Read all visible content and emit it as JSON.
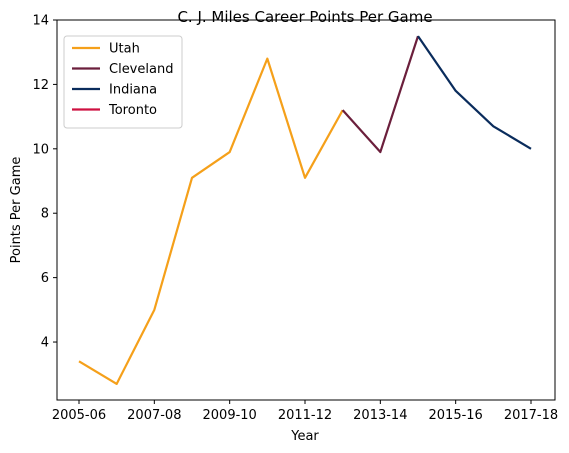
{
  "chart_data": {
    "type": "line",
    "title": "C. J. Miles Career Points Per Game",
    "xlabel": "Year",
    "ylabel": "Points Per Game",
    "x_ticks": [
      "2005-06",
      "2007-08",
      "2009-10",
      "2011-12",
      "2013-14",
      "2015-16",
      "2017-18"
    ],
    "y_ticks": [
      "4",
      "6",
      "8",
      "10",
      "12",
      "14"
    ],
    "x_range": [
      "2005-06",
      "2017-18"
    ],
    "ylim": [
      2.2,
      14
    ],
    "grid": false,
    "legend_position": "upper-left",
    "series": [
      {
        "name": "Utah",
        "color": "#f5a01a",
        "x": [
          "2005-06",
          "2006-07",
          "2007-08",
          "2008-09",
          "2009-10",
          "2010-11",
          "2011-12",
          "2012-13"
        ],
        "values": [
          3.4,
          2.7,
          5.0,
          9.1,
          9.9,
          12.8,
          9.1,
          11.2
        ]
      },
      {
        "name": "Cleveland",
        "color": "#6b1f3c",
        "x": [
          "2012-13",
          "2013-14",
          "2014-15"
        ],
        "values": [
          11.2,
          9.9,
          13.5
        ]
      },
      {
        "name": "Indiana",
        "color": "#0a2c5c",
        "x": [
          "2014-15",
          "2015-16",
          "2016-17",
          "2017-18"
        ],
        "values": [
          13.5,
          11.8,
          10.7,
          10.0
        ]
      },
      {
        "name": "Toronto",
        "color": "#ce1141",
        "x": [],
        "values": []
      }
    ]
  }
}
